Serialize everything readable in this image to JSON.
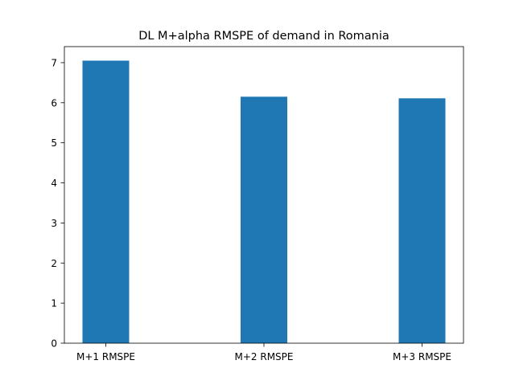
{
  "chart_data": {
    "type": "bar",
    "title": "DL M+alpha RMSPE of demand in Romania",
    "xlabel": "",
    "ylabel": "",
    "categories": [
      "M+1 RMSPE",
      "M+2 RMSPE",
      "M+3 RMSPE"
    ],
    "values": [
      7.05,
      6.15,
      6.11
    ],
    "ylim": [
      0,
      7.4
    ],
    "yticks": [
      0,
      1,
      2,
      3,
      4,
      5,
      6,
      7
    ],
    "grid": false,
    "bar_color": "#1f77b4"
  }
}
